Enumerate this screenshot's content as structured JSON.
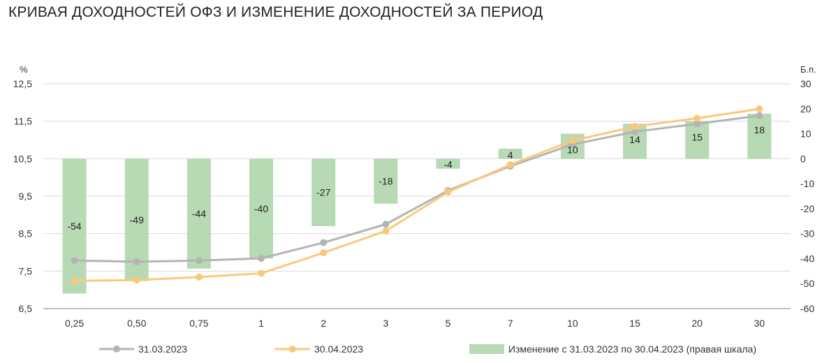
{
  "title": "КРИВАЯ ДОХОДНОСТЕЙ ОФЗ И ИЗМЕНЕНИЕ ДОХОДНОСТЕЙ ЗА ПЕРИОД",
  "colors": {
    "series_1": "#b4b4b4",
    "series_2": "#f9c97a",
    "bars": "#b7d9b3",
    "grid": "#d9d9d9",
    "axis": "#7f7f7f"
  },
  "chart_data": {
    "type": "bar+line",
    "title": "КРИВАЯ ДОХОДНОСТЕЙ ОФЗ И ИЗМЕНЕНИЕ ДОХОДНОСТЕЙ ЗА ПЕРИОД",
    "categories": [
      "0,25",
      "0,50",
      "0,75",
      "1",
      "2",
      "3",
      "5",
      "7",
      "10",
      "15",
      "20",
      "30"
    ],
    "y_left": {
      "label": "%",
      "lim": [
        6.5,
        12.5
      ],
      "ticks": [
        "6,5",
        "7,5",
        "8,5",
        "9,5",
        "10,5",
        "11,5",
        "12,5"
      ]
    },
    "y_right": {
      "label": "Б.п.",
      "lim": [
        -60,
        30
      ],
      "ticks": [
        "-60",
        "-50",
        "-40",
        "-30",
        "-20",
        "-10",
        "0",
        "10",
        "20",
        "30"
      ]
    },
    "grid": true,
    "legend_position": "bottom",
    "series": [
      {
        "name": "31.03.2023",
        "type": "line",
        "axis": "left",
        "values": [
          7.78,
          7.75,
          7.78,
          7.84,
          8.26,
          8.75,
          9.65,
          10.3,
          10.88,
          11.22,
          11.43,
          11.65
        ]
      },
      {
        "name": "30.04.2023",
        "type": "line",
        "axis": "left",
        "values": [
          7.24,
          7.26,
          7.34,
          7.44,
          7.99,
          8.57,
          9.61,
          10.34,
          10.98,
          11.36,
          11.58,
          11.83
        ]
      },
      {
        "name": "Изменение с 31.03.2023 по 30.04.2023 (правая шкала)",
        "type": "bar",
        "axis": "right",
        "values": [
          -54,
          -49,
          -44,
          -40,
          -27,
          -18,
          -4,
          4,
          10,
          14,
          15,
          18
        ],
        "labels": [
          "-54",
          "-49",
          "-44",
          "-40",
          "-27",
          "-18",
          "-4",
          "4",
          "10",
          "14",
          "15",
          "18"
        ]
      }
    ]
  }
}
